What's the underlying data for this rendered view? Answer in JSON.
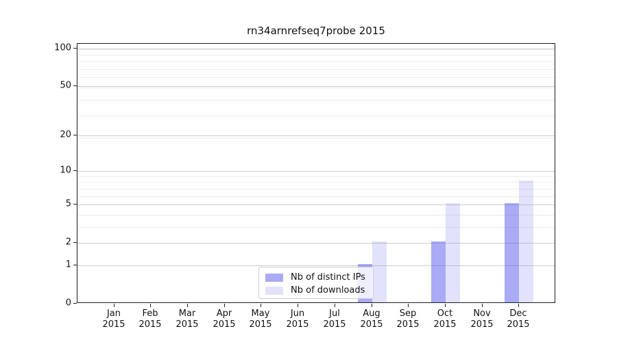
{
  "chart_data": {
    "type": "bar",
    "title": "rn34arnrefseq7probe 2015",
    "year_label": "2015",
    "categories": [
      "Jan",
      "Feb",
      "Mar",
      "Apr",
      "May",
      "Jun",
      "Jul",
      "Aug",
      "Sep",
      "Oct",
      "Nov",
      "Dec"
    ],
    "series": [
      {
        "name": "Nb of distinct IPs",
        "color": "rgba(92,92,235,0.52)",
        "values": [
          0,
          0,
          0,
          0,
          0,
          0,
          0,
          1,
          0,
          2,
          0,
          5
        ]
      },
      {
        "name": "Nb of downloads",
        "color": "rgba(92,92,235,0.18)",
        "values": [
          0,
          0,
          0,
          0,
          0,
          0,
          0,
          2,
          0,
          5,
          0,
          8
        ]
      }
    ],
    "y_ticks": [
      0,
      1,
      2,
      5,
      10,
      20,
      50,
      100
    ],
    "yscale": "log1p",
    "ylim": [
      0,
      109
    ],
    "grid": "on",
    "legend_position": "inside-bottom-center",
    "accent_color_dark": "#aaaaf4",
    "accent_color_light": "#e1e1fb"
  }
}
